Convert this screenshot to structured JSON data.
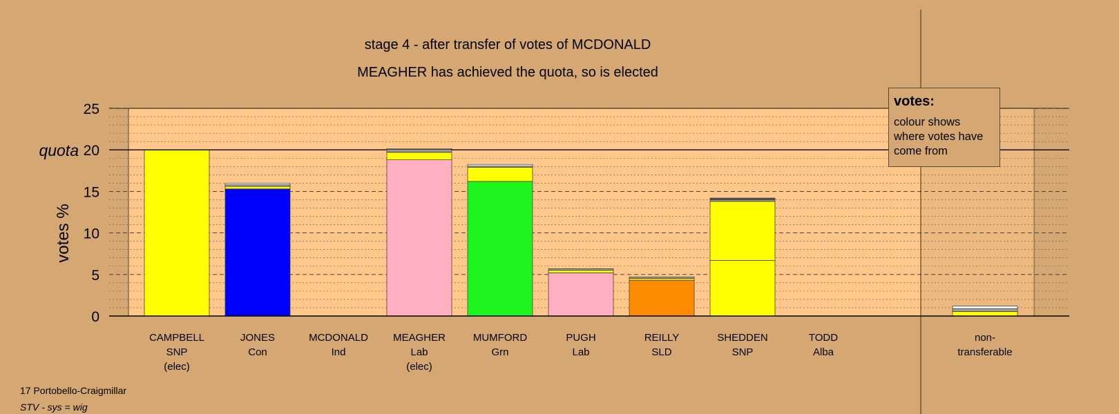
{
  "title": "stage 4 - after transfer of votes of MCDONALD",
  "subtitle": "MEAGHER has achieved the quota, so is elected",
  "footer": {
    "ward": "17 Portobello-Craigmillar",
    "system": "STV - sys = wig"
  },
  "legend": {
    "title": "votes:",
    "body": "colour shows where votes have come from"
  },
  "chart_data": {
    "type": "bar",
    "stacked": true,
    "ylabel": "votes %",
    "ylim": [
      0,
      25
    ],
    "yticks": [
      0,
      5,
      10,
      15,
      20,
      25
    ],
    "quota_label": "quota",
    "quota": 20,
    "grid": "dashed major every 5, dotted minor every 1",
    "categories": [
      {
        "name": "CAMPBELL",
        "party": "SNP",
        "status": "(elec)"
      },
      {
        "name": "JONES",
        "party": "Con",
        "status": ""
      },
      {
        "name": "MCDONALD",
        "party": "Ind",
        "status": ""
      },
      {
        "name": "MEAGHER",
        "party": "Lab",
        "status": "(elec)"
      },
      {
        "name": "MUMFORD",
        "party": "Grn",
        "status": ""
      },
      {
        "name": "PUGH",
        "party": "Lab",
        "status": ""
      },
      {
        "name": "REILLY",
        "party": "SLD",
        "status": ""
      },
      {
        "name": "SHEDDEN",
        "party": "SNP",
        "status": ""
      },
      {
        "name": "TODD",
        "party": "Alba",
        "status": ""
      }
    ],
    "nontransferable": {
      "line1": "non-",
      "line2": "transferable"
    },
    "stacks": [
      [
        {
          "value": 20.0,
          "color": "#ffff00"
        }
      ],
      [
        {
          "value": 15.3,
          "color": "#0000ff"
        },
        {
          "value": 0.3,
          "color": "#ffff00"
        },
        {
          "value": 0.2,
          "color": "#a0a0a0"
        },
        {
          "value": 0.2,
          "color": "#ffffff"
        }
      ],
      [],
      [
        {
          "value": 18.8,
          "color": "#ffafc0"
        },
        {
          "value": 0.9,
          "color": "#ffff00"
        },
        {
          "value": 0.1,
          "color": "#a0a0a0"
        },
        {
          "value": 0.35,
          "color": "#ffffff"
        }
      ],
      [
        {
          "value": 16.2,
          "color": "#1ef51e"
        },
        {
          "value": 1.7,
          "color": "#ffff00"
        },
        {
          "value": 0.15,
          "color": "#a0a0a0"
        },
        {
          "value": 0.2,
          "color": "#ffffff"
        }
      ],
      [
        {
          "value": 5.2,
          "color": "#ffafc0"
        },
        {
          "value": 0.3,
          "color": "#ffff00"
        },
        {
          "value": 0.2,
          "color": "#a0a0a0"
        }
      ],
      [
        {
          "value": 4.3,
          "color": "#ff8c00"
        },
        {
          "value": 0.2,
          "color": "#ffff00"
        },
        {
          "value": 0.2,
          "color": "#a0a0a0"
        }
      ],
      [
        {
          "value": 6.7,
          "color": "#ffff00"
        },
        {
          "value": 7.1,
          "color": "#ffff00"
        },
        {
          "value": 0.2,
          "color": "#a0a0a0"
        },
        {
          "value": 0.2,
          "color": "#555555"
        }
      ],
      [],
      [
        {
          "value": 0.55,
          "color": "#ffff00"
        },
        {
          "value": 0.35,
          "color": "#a0a0a0"
        },
        {
          "value": 0.3,
          "color": "#ffffff"
        }
      ]
    ]
  }
}
